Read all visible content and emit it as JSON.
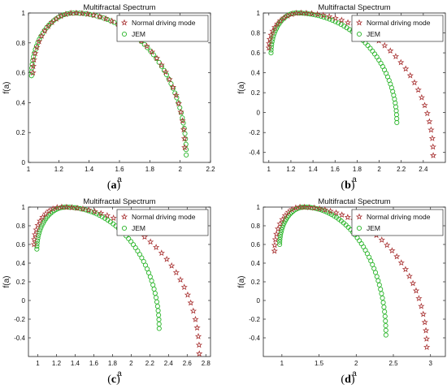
{
  "figure": {
    "panels": [
      {
        "label_open": "(",
        "label_letter": "a",
        "label_close": ")"
      },
      {
        "label_open": "(",
        "label_letter": "b",
        "label_close": ")"
      },
      {
        "label_open": "(",
        "label_letter": "c",
        "label_close": ")"
      },
      {
        "label_open": "(",
        "label_letter": "d",
        "label_close": ")"
      }
    ]
  },
  "colors": {
    "normal": "#a83232",
    "normal_glow": "#ff4a7a",
    "jem": "#2ab52a",
    "jem_glow": "#7cff7c"
  },
  "chart_data": [
    {
      "type": "scatter",
      "title": "Multifractal Spectrum",
      "xlabel": "a",
      "ylabel": "f(a)",
      "xlim": [
        1.0,
        2.2
      ],
      "ylim": [
        0.0,
        1.0
      ],
      "xticks": [
        "1",
        "1.2",
        "1.4",
        "1.6",
        "1.8",
        "2",
        "2.2"
      ],
      "xtick_values": [
        1.0,
        1.2,
        1.4,
        1.6,
        1.8,
        2.0,
        2.2
      ],
      "yticks": [
        "0",
        "0.2",
        "0.4",
        "0.6",
        "0.8",
        "1"
      ],
      "ytick_values": [
        0,
        0.2,
        0.4,
        0.6,
        0.8,
        1.0
      ],
      "legend": "top-right",
      "series": [
        {
          "name": "Normal driving mode",
          "marker": "star",
          "x_min": 1.03,
          "x_peak": 1.3,
          "x_max": 2.03,
          "y_min_left": 0.6,
          "y_min_right": 0.1,
          "n_points": 40
        },
        {
          "name": "JEM",
          "marker": "circle",
          "x_min": 1.02,
          "x_peak": 1.3,
          "x_max": 2.04,
          "y_min_left": 0.58,
          "y_min_right": 0.05,
          "n_points": 70
        }
      ]
    },
    {
      "type": "scatter",
      "title": "Multifractal Spectrum",
      "xlabel": "a",
      "ylabel": "f(a)",
      "xlim": [
        0.95,
        2.6
      ],
      "ylim": [
        -0.5,
        1.0
      ],
      "xticks": [
        "1",
        "1.2",
        "1.4",
        "1.6",
        "1.8",
        "2",
        "2.2",
        "2.4"
      ],
      "xtick_values": [
        1.0,
        1.2,
        1.4,
        1.6,
        1.8,
        2.0,
        2.2,
        2.4
      ],
      "yticks": [
        "-0.4",
        "-0.2",
        "0",
        "0.2",
        "0.4",
        "0.6",
        "0.8",
        "1"
      ],
      "ytick_values": [
        -0.4,
        -0.2,
        0,
        0.2,
        0.4,
        0.6,
        0.8,
        1.0
      ],
      "legend": "top-right",
      "series": [
        {
          "name": "Normal driving mode",
          "marker": "star",
          "x_min": 1.0,
          "x_peak": 1.28,
          "x_max": 2.49,
          "y_min_left": 0.65,
          "y_min_right": -0.43,
          "n_points": 42
        },
        {
          "name": "JEM",
          "marker": "circle",
          "x_min": 1.02,
          "x_peak": 1.25,
          "x_max": 2.16,
          "y_min_left": 0.6,
          "y_min_right": -0.1,
          "n_points": 70
        }
      ]
    },
    {
      "type": "scatter",
      "title": "Multifractal Spectrum",
      "xlabel": "a",
      "ylabel": "f(a)",
      "xlim": [
        0.9,
        2.85
      ],
      "ylim": [
        -0.6,
        1.0
      ],
      "xticks": [
        "1",
        "1.2",
        "1.4",
        "1.6",
        "1.8",
        "2",
        "2.2",
        "2.4",
        "2.6",
        "2.8"
      ],
      "xtick_values": [
        1.0,
        1.2,
        1.4,
        1.6,
        1.8,
        2.0,
        2.2,
        2.4,
        2.6,
        2.8
      ],
      "yticks": [
        "-0.4",
        "-0.2",
        "0",
        "0.2",
        "0.4",
        "0.6",
        "0.8",
        "1"
      ],
      "ytick_values": [
        -0.4,
        -0.2,
        0,
        0.2,
        0.4,
        0.6,
        0.8,
        1.0
      ],
      "legend": "top-right",
      "series": [
        {
          "name": "Normal driving mode",
          "marker": "star",
          "x_min": 0.96,
          "x_peak": 1.25,
          "x_max": 2.73,
          "y_min_left": 0.6,
          "y_min_right": -0.57,
          "n_points": 42
        },
        {
          "name": "JEM",
          "marker": "circle",
          "x_min": 0.99,
          "x_peak": 1.3,
          "x_max": 2.3,
          "y_min_left": 0.55,
          "y_min_right": -0.3,
          "n_points": 70
        }
      ]
    },
    {
      "type": "scatter",
      "title": "Multifractal Spectrum",
      "xlabel": "a",
      "ylabel": "f(a)",
      "xlim": [
        0.75,
        3.2
      ],
      "ylim": [
        -0.6,
        1.0
      ],
      "xticks": [
        "1",
        "1.5",
        "2",
        "2.5",
        "3"
      ],
      "xtick_values": [
        1.0,
        1.5,
        2.0,
        2.5,
        3.0
      ],
      "yticks": [
        "-0.4",
        "-0.2",
        "0",
        "0.2",
        "0.4",
        "0.6",
        "0.8",
        "1"
      ],
      "ytick_values": [
        -0.4,
        -0.2,
        0,
        0.2,
        0.4,
        0.6,
        0.8,
        1.0
      ],
      "legend": "top-right",
      "series": [
        {
          "name": "Normal driving mode",
          "marker": "star",
          "x_min": 0.9,
          "x_peak": 1.25,
          "x_max": 2.95,
          "y_min_left": 0.53,
          "y_min_right": -0.5,
          "n_points": 42
        },
        {
          "name": "JEM",
          "marker": "circle",
          "x_min": 0.97,
          "x_peak": 1.3,
          "x_max": 2.4,
          "y_min_left": 0.6,
          "y_min_right": -0.37,
          "n_points": 70
        }
      ]
    }
  ]
}
